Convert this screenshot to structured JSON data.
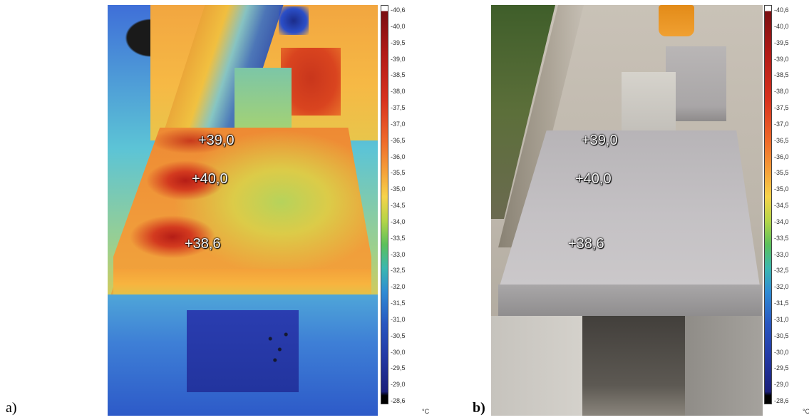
{
  "panels": {
    "a": {
      "label": "a)",
      "markers": [
        "+39,0",
        "+40,0",
        "+38,6"
      ]
    },
    "b": {
      "label": "b)",
      "markers": [
        "+39,0",
        "+40,0",
        "+38,6"
      ]
    }
  },
  "scale": {
    "unit": "°C",
    "ticks": [
      "40,6",
      "40,0",
      "39,5",
      "39,0",
      "38,5",
      "38,0",
      "37,5",
      "37,0",
      "36,5",
      "36,0",
      "35,5",
      "35,0",
      "34,5",
      "34,0",
      "33,5",
      "33,0",
      "32,5",
      "32,0",
      "31,5",
      "31,0",
      "30,5",
      "30,0",
      "29,5",
      "29,0",
      "28,6"
    ],
    "colors": {
      "max": "#7a0f12",
      "hot": "#d9331f",
      "mid": "#f6d34a",
      "cool": "#3bb7b0",
      "cold": "#233aa6"
    }
  }
}
